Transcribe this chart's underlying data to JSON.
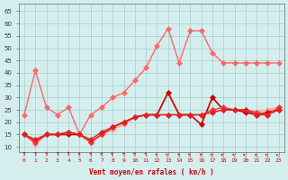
{
  "xlabel": "Vent moyen/en rafales ( km/h )",
  "background_color": "#d4eeee",
  "grid_color": "#aacccc",
  "x_labels": [
    "0",
    "1",
    "2",
    "3",
    "4",
    "5",
    "6",
    "7",
    "8",
    "9",
    "10",
    "11",
    "12",
    "13",
    "14",
    "15",
    "16",
    "17",
    "18",
    "19",
    "20",
    "21",
    "22",
    "23"
  ],
  "ylim": [
    8,
    68
  ],
  "yticks": [
    10,
    15,
    20,
    25,
    30,
    35,
    40,
    45,
    50,
    55,
    60,
    65
  ],
  "series": [
    {
      "color": "#ff6666",
      "linewidth": 1.0,
      "markersize": 3,
      "values": [
        23,
        41,
        26,
        23,
        26,
        15,
        23,
        26,
        30,
        32,
        37,
        42,
        51,
        58,
        44,
        57,
        57,
        48,
        44,
        44,
        44,
        44,
        44,
        44
      ]
    },
    {
      "color": "#ff9999",
      "linewidth": 1.0,
      "markersize": 3,
      "values": [
        15,
        11,
        15,
        15,
        15,
        15,
        12,
        15,
        17,
        19,
        22,
        23,
        23,
        32,
        23,
        23,
        23,
        24,
        25,
        25,
        25,
        24,
        25,
        26
      ]
    },
    {
      "color": "#cc0000",
      "linewidth": 1.2,
      "markersize": 3,
      "values": [
        15,
        12,
        15,
        15,
        15,
        15,
        12,
        15,
        18,
        20,
        22,
        23,
        23,
        32,
        23,
        23,
        19,
        30,
        25,
        25,
        24,
        23,
        24,
        25
      ]
    },
    {
      "color": "#ff3333",
      "linewidth": 1.0,
      "markersize": 3,
      "values": [
        15,
        12,
        15,
        15,
        16,
        15,
        12,
        15,
        18,
        20,
        22,
        23,
        23,
        23,
        23,
        23,
        23,
        25,
        26,
        25,
        25,
        24,
        23,
        26
      ]
    },
    {
      "color": "#dd2222",
      "linewidth": 1.0,
      "markersize": 3,
      "values": [
        15,
        13,
        15,
        15,
        16,
        15,
        13,
        16,
        18,
        20,
        22,
        23,
        23,
        23,
        23,
        23,
        23,
        24,
        25,
        25,
        25,
        23,
        23,
        25
      ]
    }
  ],
  "arrow_color": "#cc0000"
}
